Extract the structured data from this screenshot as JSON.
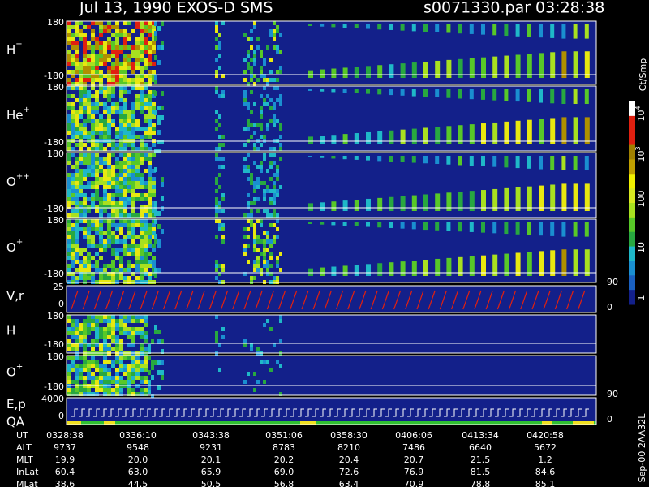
{
  "header": {
    "title": "Jul 13, 1990   EXOS-D SMS",
    "file": "s0071330.par",
    "time": "03:28:38"
  },
  "panels": [
    {
      "label": "H",
      "sup": "+",
      "ticks": [
        "180",
        "-180"
      ]
    },
    {
      "label": "He",
      "sup": "+",
      "ticks": [
        "180",
        "-180"
      ]
    },
    {
      "label": "O",
      "sup": "++",
      "ticks": [
        "180",
        "-180"
      ]
    },
    {
      "label": "O",
      "sup": "+",
      "ticks": [
        "180",
        "-180"
      ]
    },
    {
      "label": "V,r",
      "sup": "",
      "ticks": [
        "25",
        "0"
      ],
      "right_ticks": [
        "90",
        "0"
      ]
    },
    {
      "label": "H",
      "sup": "+",
      "ticks": [
        "180",
        "-180"
      ]
    },
    {
      "label": "O",
      "sup": "+",
      "ticks": [
        "180",
        "-180"
      ]
    },
    {
      "label": "E,p",
      "sup": "",
      "label2": "QA",
      "ticks": [
        "4000",
        "0"
      ],
      "right_ticks": [
        "90",
        "0"
      ]
    }
  ],
  "colorbar": {
    "unit": "Ct/Smp",
    "labels": [
      {
        "base": "10",
        "exp": "4"
      },
      {
        "base": "10",
        "exp": "3"
      },
      {
        "base": "100",
        "exp": ""
      },
      {
        "base": "10",
        "exp": ""
      },
      {
        "base": "1",
        "exp": ""
      }
    ]
  },
  "footer": {
    "rows": [
      {
        "name": "UT",
        "values": [
          "0328:38",
          "0336:10",
          "0343:38",
          "0351:06",
          "0358:30",
          "0406:06",
          "0413:34",
          "0420:58"
        ]
      },
      {
        "name": "ALT",
        "values": [
          "9737",
          "9548",
          "9231",
          "8783",
          "8210",
          "7486",
          "6640",
          "5672"
        ]
      },
      {
        "name": "MLT",
        "values": [
          "19.9",
          "20.0",
          "20.1",
          "20.2",
          "20.4",
          "20.7",
          "21.5",
          "1.2"
        ]
      },
      {
        "name": "InLat",
        "values": [
          "60.4",
          "63.0",
          "65.9",
          "69.0",
          "72.6",
          "76.9",
          "81.5",
          "84.6"
        ]
      },
      {
        "name": "MLat",
        "values": [
          "38.6",
          "44.5",
          "50.5",
          "56.8",
          "63.4",
          "70.9",
          "78.8",
          "85.1"
        ]
      }
    ],
    "stamp": "Sep-00 2AA32L"
  }
}
